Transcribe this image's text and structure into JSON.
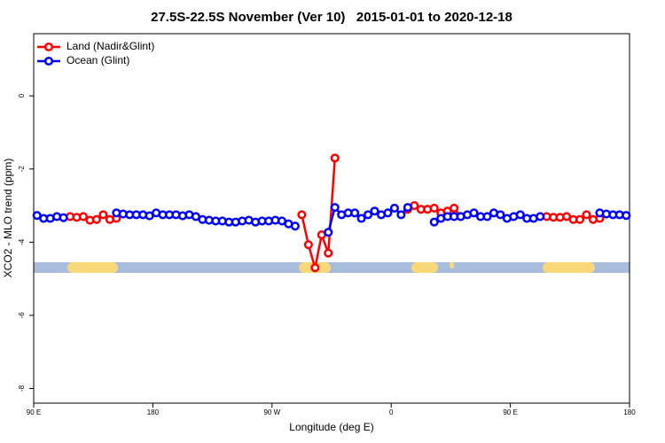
{
  "chart_data": {
    "type": "line",
    "title": "27.5S-22.5S November (Ver 10)   2015-01-01 to 2020-12-18",
    "x_label": "Longitude (deg E)",
    "y_label": "XCO2 - MLO trend (ppm)",
    "xlim": [
      90,
      540
    ],
    "ylim": [
      -8.4,
      1.7
    ],
    "xticks": [
      {
        "value": 90,
        "label": "90 E"
      },
      {
        "value": 180,
        "label": "180"
      },
      {
        "value": 270,
        "label": "90 W"
      },
      {
        "value": 360,
        "label": "0"
      },
      {
        "value": 450,
        "label": "90 E"
      },
      {
        "value": 540,
        "label": "180"
      }
    ],
    "yticks": [
      0,
      -2,
      -4,
      -6,
      -8
    ],
    "legend": "top-left",
    "x": [
      92.5,
      97.5,
      102.5,
      107.5,
      112.5,
      117.5,
      122.5,
      127.5,
      132.5,
      137.5,
      142.5,
      147.5,
      152.5,
      157.5,
      162.5,
      167.5,
      172.5,
      177.5,
      182.5,
      187.5,
      192.5,
      197.5,
      202.5,
      207.5,
      212.5,
      217.5,
      222.5,
      227.5,
      232.5,
      237.5,
      242.5,
      247.5,
      252.5,
      257.5,
      262.5,
      267.5,
      272.5,
      277.5,
      282.5,
      287.5,
      292.5,
      297.5,
      302.5,
      307.5,
      312.5,
      317.5,
      322.5,
      327.5,
      332.5,
      337.5,
      342.5,
      347.5,
      352.5,
      357.5,
      362.5,
      367.5,
      372.5,
      377.5,
      382.5,
      387.5,
      392.5,
      397.5,
      402.5,
      407.5,
      412.5,
      417.5,
      422.5,
      427.5,
      432.5,
      437.5,
      442.5,
      447.5,
      452.5,
      457.5,
      462.5,
      467.5,
      472.5,
      477.5,
      482.5,
      487.5,
      492.5,
      497.5,
      502.5,
      507.5,
      512.5,
      517.5,
      522.5,
      527.5,
      532.5,
      537.5
    ],
    "series": [
      {
        "name": "Land (Nadir&Glint)",
        "color": "#ff0000",
        "values": [
          null,
          null,
          null,
          null,
          null,
          -3.3,
          -3.32,
          -3.3,
          -3.4,
          -3.38,
          -3.25,
          -3.38,
          -3.35,
          null,
          null,
          null,
          null,
          null,
          null,
          null,
          null,
          null,
          null,
          null,
          null,
          null,
          null,
          null,
          null,
          null,
          null,
          null,
          null,
          null,
          null,
          null,
          null,
          null,
          null,
          null,
          -3.25,
          -4.07,
          -4.7,
          -3.8,
          -4.3,
          -1.7,
          null,
          null,
          null,
          null,
          null,
          null,
          null,
          null,
          null,
          null,
          -3.1,
          -3.0,
          -3.1,
          -3.1,
          -3.07,
          -3.2,
          -3.15,
          -3.07,
          -3.3,
          null,
          null,
          null,
          null,
          null,
          null,
          null,
          null,
          null,
          null,
          null,
          null,
          -3.3,
          -3.32,
          -3.32,
          -3.3,
          -3.38,
          -3.38,
          -3.25,
          -3.38,
          -3.35,
          null,
          null,
          null,
          null
        ]
      },
      {
        "name": "Ocean (Glint)",
        "color": "#0000ff",
        "values": [
          -3.27,
          -3.35,
          -3.35,
          -3.3,
          -3.33,
          null,
          null,
          null,
          null,
          null,
          null,
          null,
          -3.2,
          -3.23,
          -3.25,
          -3.25,
          -3.25,
          -3.28,
          -3.2,
          -3.25,
          -3.25,
          -3.25,
          -3.28,
          -3.25,
          -3.3,
          -3.38,
          -3.4,
          -3.42,
          -3.42,
          -3.45,
          -3.45,
          -3.42,
          -3.4,
          -3.45,
          -3.42,
          -3.42,
          -3.4,
          -3.42,
          -3.5,
          -3.56,
          null,
          null,
          null,
          null,
          -3.73,
          -3.05,
          -3.25,
          -3.2,
          -3.2,
          -3.35,
          -3.25,
          -3.15,
          -3.25,
          -3.2,
          -3.07,
          -3.25,
          -3.05,
          null,
          null,
          null,
          -3.45,
          -3.35,
          -3.3,
          -3.3,
          -3.3,
          -3.25,
          -3.2,
          -3.3,
          -3.3,
          -3.2,
          -3.25,
          -3.35,
          -3.3,
          -3.25,
          -3.35,
          -3.35,
          -3.3,
          null,
          null,
          null,
          null,
          null,
          null,
          null,
          null,
          -3.2,
          -3.23,
          -3.25,
          -3.25,
          -3.27
        ]
      }
    ]
  }
}
